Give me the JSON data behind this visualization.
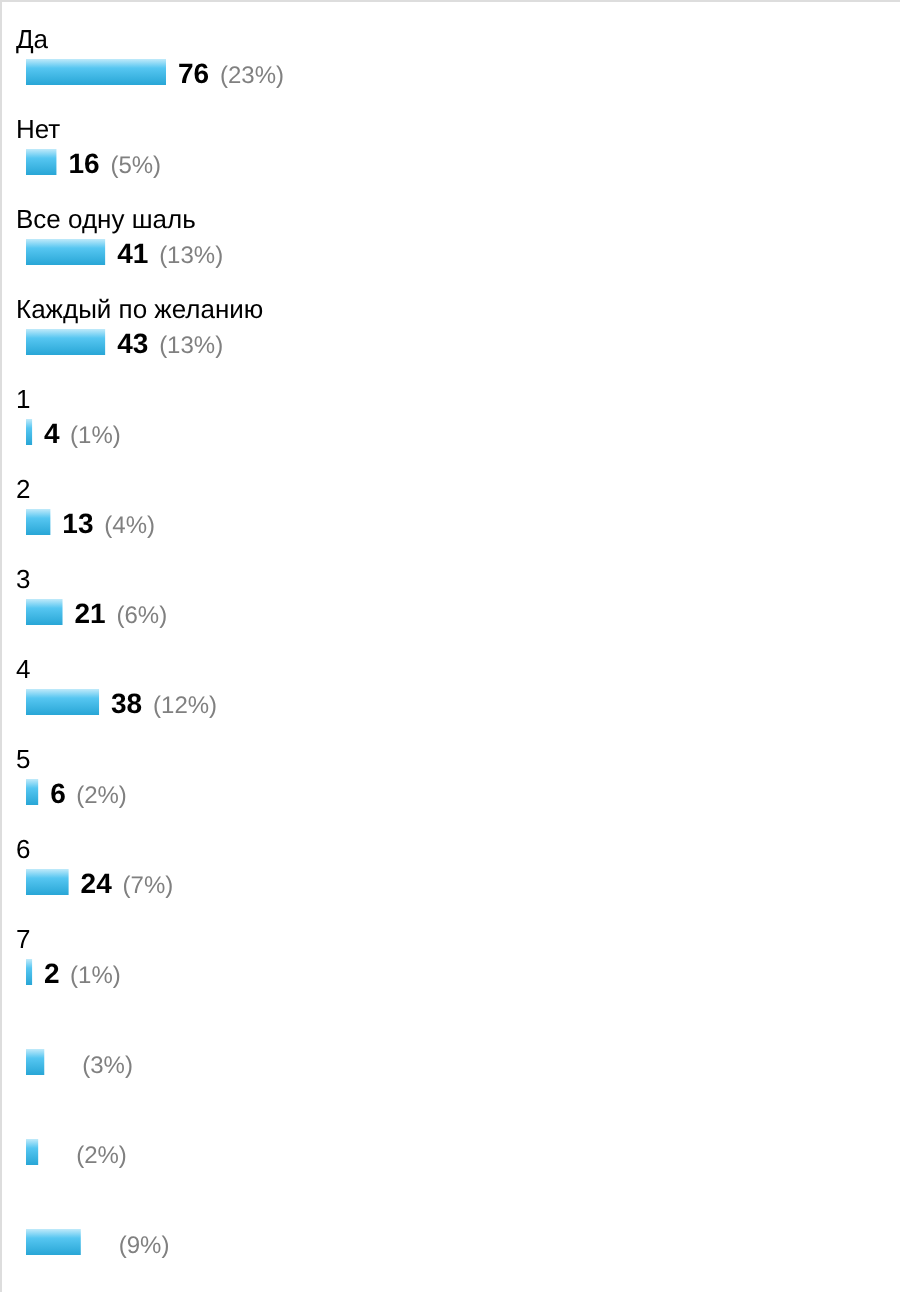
{
  "chart_data": {
    "type": "bar",
    "orientation": "horizontal",
    "categories": [
      "Да",
      "Нет",
      "Все одну шаль",
      "Каждый по желанию",
      "1",
      "2",
      "3",
      "4",
      "5",
      "6",
      "7",
      null,
      null,
      null
    ],
    "values": [
      23,
      5,
      13,
      13,
      1,
      4,
      6,
      12,
      2,
      7,
      1,
      3,
      2,
      9
    ],
    "color": "#2cb8ee",
    "value_labels": [
      "(23%)",
      "(5%)",
      "(13%)",
      "(13%)",
      "(1%)",
      "(4%)",
      "(6%)",
      "(12%)",
      "(2%)",
      "(7%)",
      "(1%)",
      "(3%)",
      "(2%)",
      "(9%)"
    ],
    "annotations": [
      "76",
      "16",
      "41",
      "43",
      "4",
      "13",
      "21",
      "38",
      "6",
      "24",
      "2"
    ]
  }
}
